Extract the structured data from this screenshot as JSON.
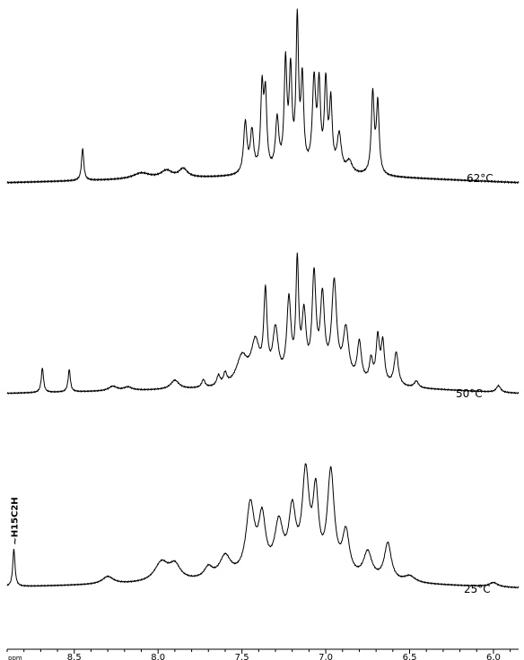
{
  "chart_data": {
    "type": "line",
    "x_unit": "ppm",
    "xlim": [
      8.9,
      5.85
    ],
    "x_reversed": true,
    "x_ticks": [
      {
        "value": 8.5,
        "label": "8.5"
      },
      {
        "value": 8.0,
        "label": "8.0"
      },
      {
        "value": 7.5,
        "label": "7.5"
      },
      {
        "value": 7.0,
        "label": "7.0"
      },
      {
        "value": 6.5,
        "label": "6.5"
      },
      {
        "value": 6.0,
        "label": "6.0"
      }
    ],
    "grid": false,
    "legend": "none",
    "series": [
      {
        "name": "62°C",
        "baseline": 0.02,
        "ylim": [
          0,
          1
        ],
        "drift": [
          [
            8.9,
            0.02
          ],
          [
            7.5,
            0.06
          ],
          [
            7.0,
            0.08
          ],
          [
            6.7,
            0.06
          ],
          [
            5.85,
            0.02
          ]
        ],
        "peaks": [
          [
            8.45,
            0.22,
            0.008
          ],
          [
            8.1,
            0.04,
            0.06
          ],
          [
            7.95,
            0.05,
            0.04
          ],
          [
            7.85,
            0.06,
            0.03
          ],
          [
            7.48,
            0.35,
            0.012
          ],
          [
            7.44,
            0.28,
            0.012
          ],
          [
            7.38,
            0.55,
            0.01
          ],
          [
            7.36,
            0.5,
            0.01
          ],
          [
            7.29,
            0.35,
            0.012
          ],
          [
            7.24,
            0.72,
            0.01
          ],
          [
            7.21,
            0.65,
            0.01
          ],
          [
            7.17,
            1.0,
            0.009
          ],
          [
            7.14,
            0.6,
            0.01
          ],
          [
            7.07,
            0.6,
            0.012
          ],
          [
            7.04,
            0.55,
            0.01
          ],
          [
            7.0,
            0.58,
            0.01
          ],
          [
            6.97,
            0.45,
            0.01
          ],
          [
            6.92,
            0.25,
            0.015
          ],
          [
            6.86,
            0.08,
            0.02
          ],
          [
            6.72,
            0.55,
            0.01
          ],
          [
            6.69,
            0.48,
            0.01
          ]
        ]
      },
      {
        "name": "50°C",
        "baseline": 0.02,
        "ylim": [
          0,
          1
        ],
        "drift": [
          [
            8.9,
            0.01
          ],
          [
            7.6,
            0.05
          ],
          [
            7.0,
            0.1
          ],
          [
            6.6,
            0.06
          ],
          [
            5.85,
            0.01
          ]
        ],
        "peaks": [
          [
            8.69,
            0.22,
            0.008
          ],
          [
            8.53,
            0.2,
            0.008
          ],
          [
            8.27,
            0.04,
            0.03
          ],
          [
            8.18,
            0.03,
            0.03
          ],
          [
            7.9,
            0.08,
            0.03
          ],
          [
            7.73,
            0.07,
            0.012
          ],
          [
            7.64,
            0.09,
            0.012
          ],
          [
            7.6,
            0.1,
            0.012
          ],
          [
            7.5,
            0.25,
            0.04
          ],
          [
            7.42,
            0.35,
            0.03
          ],
          [
            7.36,
            0.75,
            0.012
          ],
          [
            7.3,
            0.45,
            0.02
          ],
          [
            7.22,
            0.7,
            0.015
          ],
          [
            7.17,
            1.0,
            0.01
          ],
          [
            7.13,
            0.55,
            0.015
          ],
          [
            7.07,
            0.9,
            0.014
          ],
          [
            7.02,
            0.7,
            0.015
          ],
          [
            6.95,
            0.85,
            0.018
          ],
          [
            6.88,
            0.45,
            0.02
          ],
          [
            6.8,
            0.35,
            0.015
          ],
          [
            6.73,
            0.2,
            0.012
          ],
          [
            6.69,
            0.4,
            0.012
          ],
          [
            6.66,
            0.36,
            0.012
          ],
          [
            6.58,
            0.3,
            0.015
          ],
          [
            6.46,
            0.06,
            0.015
          ],
          [
            5.97,
            0.06,
            0.015
          ]
        ]
      },
      {
        "name": "25°C",
        "baseline": 0.02,
        "ylim": [
          0,
          1
        ],
        "annotation": "~H15C2H",
        "drift": [
          [
            8.9,
            0.02
          ],
          [
            8.0,
            0.05
          ],
          [
            7.2,
            0.1
          ],
          [
            6.6,
            0.05
          ],
          [
            5.85,
            0.01
          ]
        ],
        "peaks": [
          [
            8.86,
            0.35,
            0.008
          ],
          [
            8.3,
            0.07,
            0.04
          ],
          [
            7.98,
            0.18,
            0.05
          ],
          [
            7.9,
            0.14,
            0.04
          ],
          [
            7.7,
            0.1,
            0.03
          ],
          [
            7.6,
            0.2,
            0.04
          ],
          [
            7.45,
            0.65,
            0.03
          ],
          [
            7.38,
            0.5,
            0.025
          ],
          [
            7.28,
            0.45,
            0.03
          ],
          [
            7.2,
            0.55,
            0.025
          ],
          [
            7.12,
            0.9,
            0.025
          ],
          [
            7.06,
            0.7,
            0.02
          ],
          [
            6.97,
            0.95,
            0.025
          ],
          [
            6.88,
            0.4,
            0.025
          ],
          [
            6.75,
            0.25,
            0.03
          ],
          [
            6.63,
            0.35,
            0.025
          ],
          [
            6.5,
            0.06,
            0.04
          ],
          [
            6.0,
            0.04,
            0.03
          ]
        ]
      }
    ]
  }
}
